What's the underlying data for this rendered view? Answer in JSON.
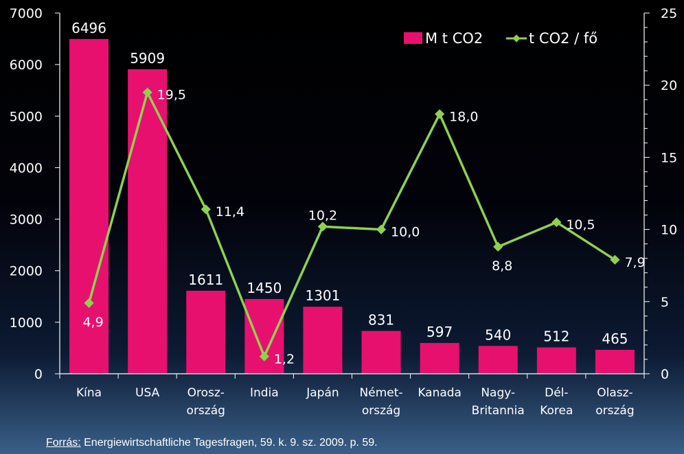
{
  "colors": {
    "bar": "#e8106e",
    "line": "#8fd14f",
    "axis": "#ffffff",
    "text": "#ffffff"
  },
  "source": {
    "prefix": "Forrás:",
    "text": " Energiewirtschaftliche Tagesfragen, 59. k. 9. sz. 2009. p. 59."
  },
  "chart_data": {
    "type": "bar",
    "categories": [
      [
        "Kína"
      ],
      [
        "USA"
      ],
      [
        "Orosz-",
        "ország"
      ],
      [
        "India"
      ],
      [
        "Japán"
      ],
      [
        "Német-",
        "ország"
      ],
      [
        "Kanada"
      ],
      [
        "Nagy-",
        "Britannia"
      ],
      [
        "Dél-",
        "Korea"
      ],
      [
        "Olasz-",
        "ország"
      ]
    ],
    "series": [
      {
        "name": "M t CO2",
        "kind": "bar",
        "axis": "left",
        "values": [
          6496,
          5909,
          1611,
          1450,
          1301,
          831,
          597,
          540,
          512,
          465
        ],
        "labels": [
          "6496",
          "5909",
          "1611",
          "1450",
          "1301",
          "831",
          "597",
          "540",
          "512",
          "465"
        ]
      },
      {
        "name": "t CO2 / fő",
        "kind": "line",
        "axis": "right",
        "values": [
          4.9,
          19.5,
          11.4,
          1.2,
          10.2,
          10.0,
          18.0,
          8.8,
          10.5,
          7.9
        ],
        "labels": [
          "4,9",
          "19,5",
          "11,4",
          "1,2",
          "10,2",
          "10,0",
          "18,0",
          "8,8",
          "10,5",
          "7,9"
        ],
        "label_positions": [
          "below",
          "right",
          "right",
          "right",
          "above",
          "right",
          "right",
          "below",
          "right",
          "right"
        ]
      }
    ],
    "y_left": {
      "min": 0,
      "max": 7000,
      "ticks": [
        0,
        1000,
        2000,
        3000,
        4000,
        5000,
        6000,
        7000
      ]
    },
    "y_right": {
      "min": 0,
      "max": 25,
      "ticks": [
        0,
        5,
        10,
        15,
        20,
        25
      ]
    },
    "legend_position": "top-right",
    "grid": false
  }
}
